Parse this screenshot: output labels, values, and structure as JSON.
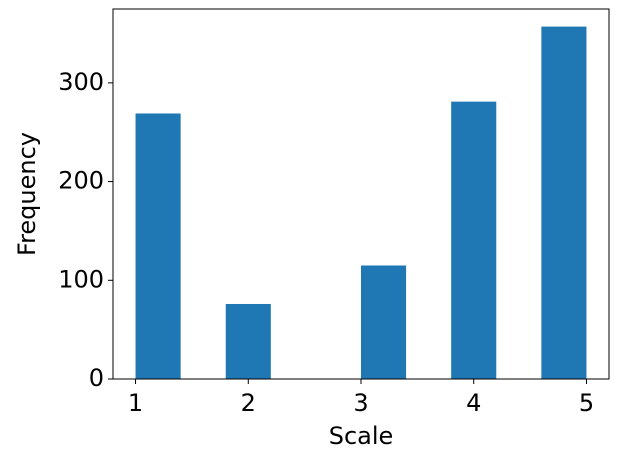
{
  "chart_data": {
    "type": "histogram",
    "xlabel": "Scale",
    "ylabel": "Frequency",
    "bins": [
      1.0,
      1.4,
      1.8,
      2.2,
      2.6,
      3.0,
      3.4,
      3.8,
      4.2,
      4.6,
      5.0
    ],
    "values": [
      269,
      0,
      76,
      0,
      0,
      115,
      0,
      281,
      0,
      357
    ],
    "color": "#1f77b4",
    "xlim": [
      0.8,
      5.2
    ],
    "xticks": [
      1,
      2,
      3,
      4,
      5
    ],
    "ylim": [
      0,
      374.85
    ],
    "yticks": [
      0,
      100,
      200,
      300
    ]
  }
}
